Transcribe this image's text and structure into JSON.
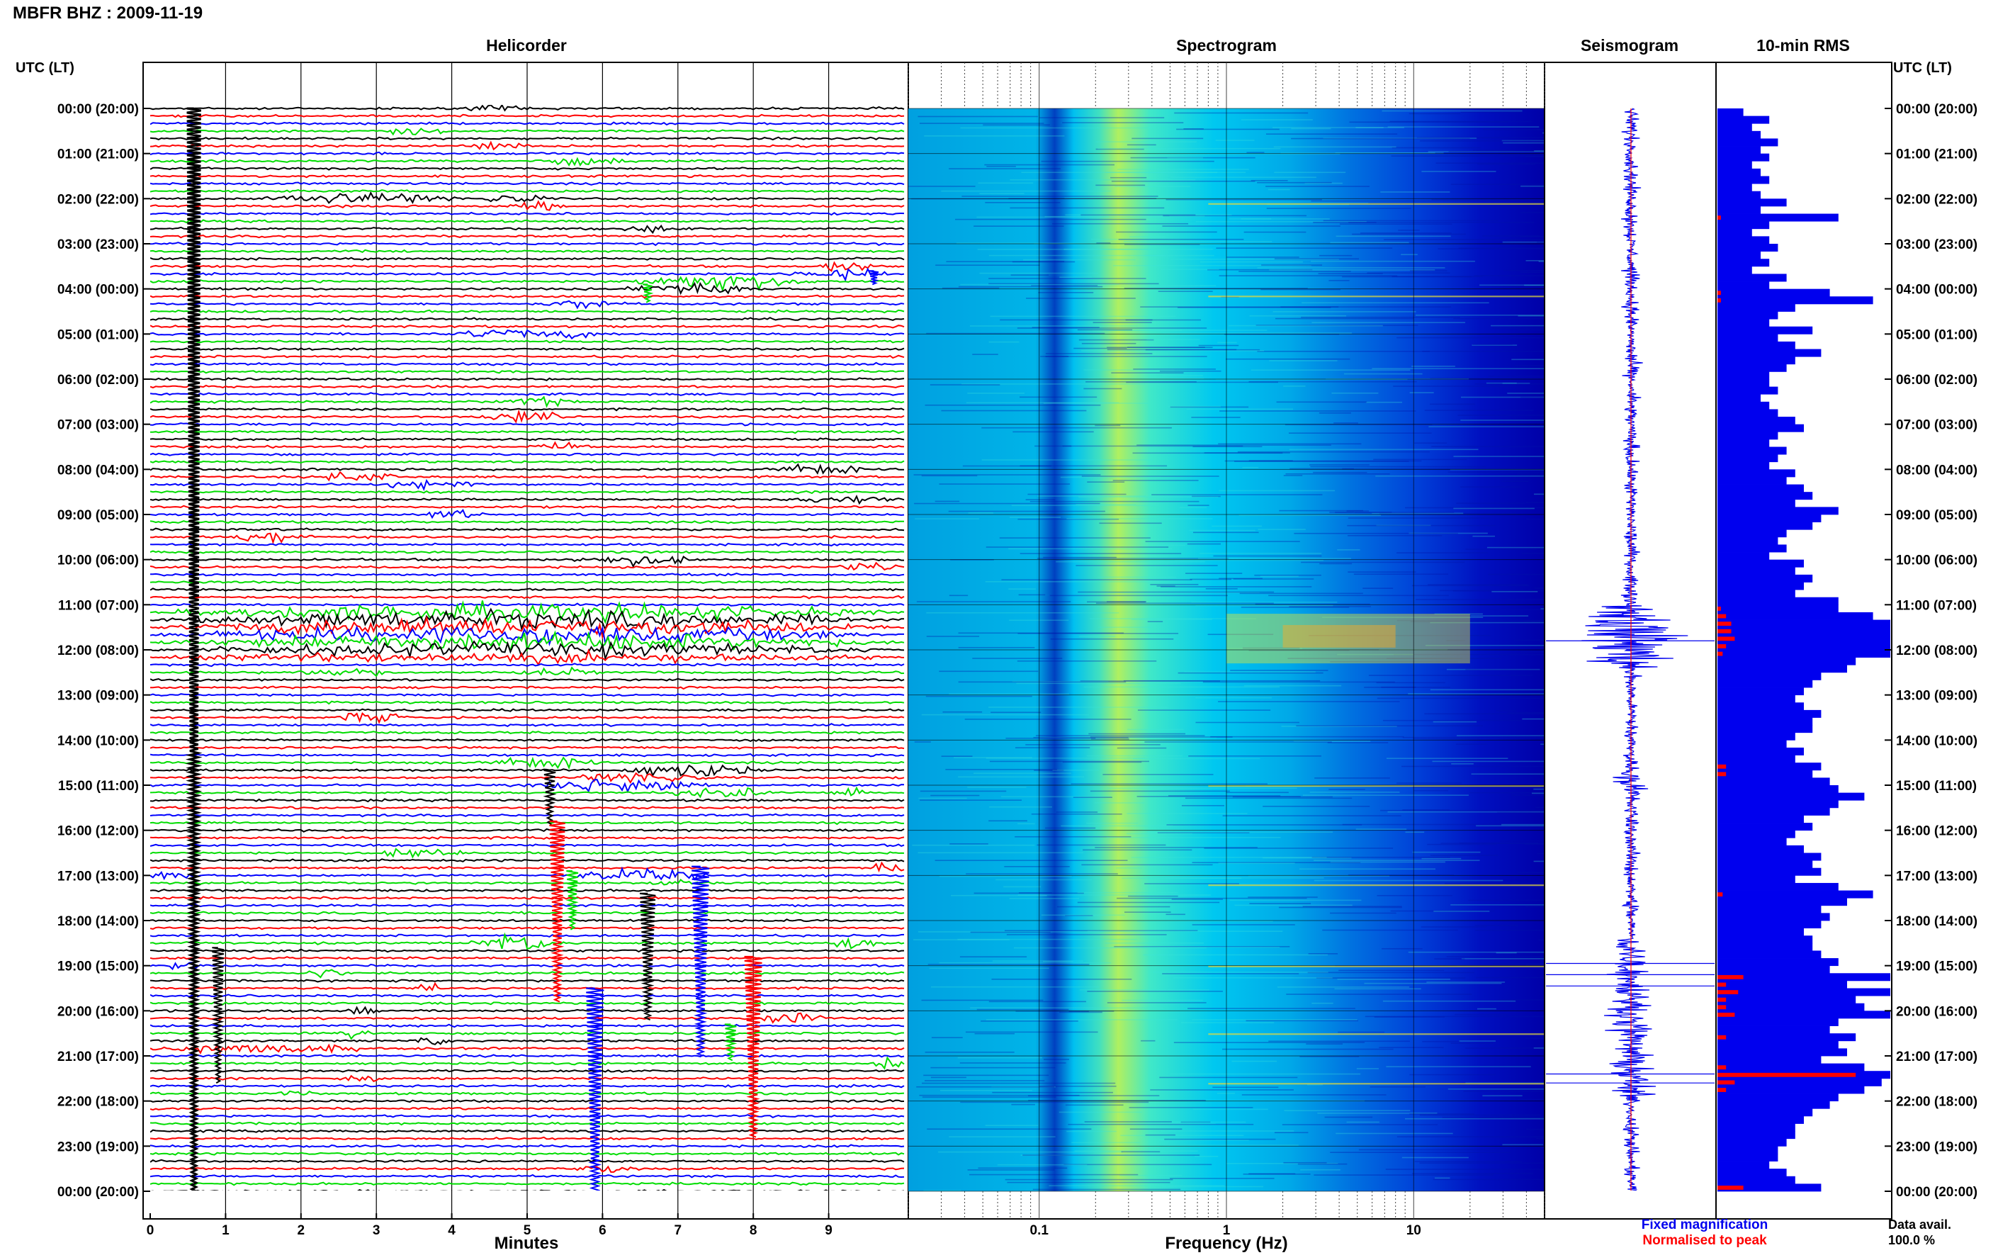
{
  "title": "MBFR BHZ : 2009-11-19",
  "colors": {
    "trace_cycle": [
      "#000000",
      "#ff0000",
      "#0000ff",
      "#00dd00"
    ],
    "rms_fixed": "#0000ee",
    "rms_norm": "#ff0000",
    "spec_low": "#0000cc",
    "spec_mid": "#00bbee",
    "spec_high": "#f0f000"
  },
  "chart_data": [
    {
      "type": "line",
      "title": "Helicorder",
      "xlabel": "Minutes",
      "x_ticks": [
        "0",
        "1",
        "2",
        "3",
        "4",
        "5",
        "6",
        "7",
        "8",
        "9"
      ],
      "xlim": [
        0,
        10
      ],
      "y_axis_label": "UTC (LT)",
      "y_ticks_utc_lt": [
        "00:00 (20:00)",
        "01:00 (21:00)",
        "02:00 (22:00)",
        "03:00 (23:00)",
        "04:00 (00:00)",
        "05:00 (01:00)",
        "06:00 (02:00)",
        "07:00 (03:00)",
        "08:00 (04:00)",
        "09:00 (05:00)",
        "10:00 (06:00)",
        "11:00 (07:00)",
        "12:00 (08:00)",
        "13:00 (09:00)",
        "14:00 (10:00)",
        "15:00 (11:00)",
        "16:00 (12:00)",
        "17:00 (13:00)",
        "18:00 (14:00)",
        "19:00 (15:00)",
        "20:00 (16:00)",
        "21:00 (17:00)",
        "22:00 (18:00)",
        "23:00 (19:00)",
        "00:00 (20:00)"
      ],
      "lines_per_hour": 6,
      "line_duration_min": 10,
      "events": [
        {
          "hour": 0.0,
          "minute": 4.1,
          "dur": 1.0,
          "amp": 0.25
        },
        {
          "hour": 0.5,
          "minute": 3.0,
          "dur": 1.0,
          "amp": 0.3
        },
        {
          "hour": 0.8,
          "minute": 4.0,
          "dur": 1.2,
          "amp": 0.35
        },
        {
          "hour": 1.17,
          "minute": 5.0,
          "dur": 1.5,
          "amp": 0.35
        },
        {
          "hour": 2.0,
          "minute": 1.4,
          "dur": 2.8,
          "amp": 0.6
        },
        {
          "hour": 2.0,
          "minute": 4.3,
          "dur": 1.0,
          "amp": 0.5
        },
        {
          "hour": 2.1,
          "minute": 4.7,
          "dur": 0.8,
          "amp": 0.5
        },
        {
          "hour": 2.65,
          "minute": 6.2,
          "dur": 1.0,
          "amp": 0.35
        },
        {
          "hour": 3.5,
          "minute": 8.6,
          "dur": 1.3,
          "amp": 0.5
        },
        {
          "hour": 3.65,
          "minute": 8.4,
          "dur": 1.5,
          "amp": 0.5
        },
        {
          "hour": 3.83,
          "minute": 6.3,
          "dur": 2.6,
          "amp": 0.8
        },
        {
          "hour": 4.0,
          "minute": 6.2,
          "dur": 2.0,
          "amp": 0.6
        },
        {
          "hour": 4.3,
          "minute": 5.2,
          "dur": 1.2,
          "amp": 0.4
        },
        {
          "hour": 5.0,
          "minute": 4.0,
          "dur": 1.5,
          "amp": 0.5
        },
        {
          "hour": 5.0,
          "minute": 5.0,
          "dur": 1.0,
          "amp": 0.4
        },
        {
          "hour": 6.5,
          "minute": 4.5,
          "dur": 1.2,
          "amp": 0.5
        },
        {
          "hour": 6.83,
          "minute": 4.3,
          "dur": 1.3,
          "amp": 0.55
        },
        {
          "hour": 7.5,
          "minute": 5.0,
          "dur": 1.0,
          "amp": 0.35
        },
        {
          "hour": 8.2,
          "minute": 2.2,
          "dur": 1.2,
          "amp": 0.6
        },
        {
          "hour": 8.33,
          "minute": 3.0,
          "dur": 1.5,
          "amp": 0.4
        },
        {
          "hour": 8.0,
          "minute": 8.3,
          "dur": 1.2,
          "amp": 0.55
        },
        {
          "hour": 8.65,
          "minute": 8.5,
          "dur": 1.5,
          "amp": 0.4
        },
        {
          "hour": 9.0,
          "minute": 3.5,
          "dur": 1.0,
          "amp": 0.4
        },
        {
          "hour": 9.5,
          "minute": 1.0,
          "dur": 1.2,
          "amp": 0.6
        },
        {
          "hour": 10.0,
          "minute": 5.5,
          "dur": 1.8,
          "amp": 0.5
        },
        {
          "hour": 10.2,
          "minute": 9.0,
          "dur": 1.0,
          "amp": 0.5
        },
        {
          "hour": 11.17,
          "minute": 0.0,
          "dur": 10.0,
          "amp": 0.9
        },
        {
          "hour": 11.33,
          "minute": 0.0,
          "dur": 10.0,
          "amp": 0.9
        },
        {
          "hour": 11.5,
          "minute": 0.0,
          "dur": 10.0,
          "amp": 0.95
        },
        {
          "hour": 11.67,
          "minute": 0.0,
          "dur": 10.0,
          "amp": 0.9
        },
        {
          "hour": 11.83,
          "minute": 0.0,
          "dur": 10.0,
          "amp": 0.9
        },
        {
          "hour": 12.0,
          "minute": 0.0,
          "dur": 10.0,
          "amp": 0.7
        },
        {
          "hour": 12.17,
          "minute": 0.0,
          "dur": 10.0,
          "amp": 0.5
        },
        {
          "hour": 12.5,
          "minute": 1.8,
          "dur": 1.5,
          "amp": 0.4
        },
        {
          "hour": 12.5,
          "minute": 4.8,
          "dur": 1.2,
          "amp": 0.4
        },
        {
          "hour": 13.5,
          "minute": 2.3,
          "dur": 1.2,
          "amp": 0.5
        },
        {
          "hour": 14.5,
          "minute": 4.5,
          "dur": 1.5,
          "amp": 0.6
        },
        {
          "hour": 14.67,
          "minute": 6.2,
          "dur": 2.0,
          "amp": 0.7
        },
        {
          "hour": 14.83,
          "minute": 5.5,
          "dur": 2.0,
          "amp": 0.6
        },
        {
          "hour": 15.0,
          "minute": 5.0,
          "dur": 2.5,
          "amp": 0.8
        },
        {
          "hour": 15.17,
          "minute": 6.8,
          "dur": 1.5,
          "amp": 0.5
        },
        {
          "hour": 15.17,
          "minute": 9.0,
          "dur": 0.6,
          "amp": 0.6
        },
        {
          "hour": 16.5,
          "minute": 3.0,
          "dur": 1.2,
          "amp": 0.5
        },
        {
          "hour": 16.83,
          "minute": 9.5,
          "dur": 0.6,
          "amp": 0.6
        },
        {
          "hour": 17.0,
          "minute": 0.0,
          "dur": 0.6,
          "amp": 0.7
        },
        {
          "hour": 17.0,
          "minute": 5.5,
          "dur": 2.0,
          "amp": 0.6
        },
        {
          "hour": 17.17,
          "minute": 6.5,
          "dur": 1.0,
          "amp": 0.4
        },
        {
          "hour": 18.5,
          "minute": 4.2,
          "dur": 1.3,
          "amp": 0.9
        },
        {
          "hour": 18.5,
          "minute": 9.0,
          "dur": 0.8,
          "amp": 0.7
        },
        {
          "hour": 19.0,
          "minute": 0.2,
          "dur": 0.5,
          "amp": 0.6
        },
        {
          "hour": 19.17,
          "minute": 2.0,
          "dur": 0.6,
          "amp": 0.5
        },
        {
          "hour": 19.5,
          "minute": 3.4,
          "dur": 0.5,
          "amp": 0.5
        },
        {
          "hour": 20.0,
          "minute": 2.6,
          "dur": 0.5,
          "amp": 0.5
        },
        {
          "hour": 20.2,
          "minute": 8.0,
          "dur": 1.0,
          "amp": 0.8
        },
        {
          "hour": 20.5,
          "minute": 2.5,
          "dur": 0.5,
          "amp": 0.5
        },
        {
          "hour": 20.67,
          "minute": 3.5,
          "dur": 0.5,
          "amp": 0.5
        },
        {
          "hour": 20.83,
          "minute": 0.0,
          "dur": 3.0,
          "amp": 0.5
        },
        {
          "hour": 21.2,
          "minute": 9.6,
          "dur": 0.4,
          "amp": 0.9
        },
        {
          "hour": 21.5,
          "minute": 2.5,
          "dur": 0.6,
          "amp": 0.5
        },
        {
          "hour": 21.83,
          "minute": 1.7,
          "dur": 0.5,
          "amp": 0.4
        },
        {
          "hour": 23.5,
          "minute": 5.5,
          "dur": 1.0,
          "amp": 0.4
        }
      ],
      "transients": [
        {
          "hour": 0.0,
          "minute": 0.58,
          "amp": 1.0,
          "dir": "down",
          "len_h": 24.0
        },
        {
          "hour": 3.6,
          "minute": 9.6,
          "amp": 0.5,
          "dir": "up",
          "len_h": 0.3
        },
        {
          "hour": 3.9,
          "minute": 6.6,
          "amp": 0.5,
          "dir": "down",
          "len_h": 0.4
        },
        {
          "hour": 14.67,
          "minute": 5.3,
          "amp": 0.6,
          "dir": "down",
          "len_h": 1.2
        },
        {
          "hour": 15.8,
          "minute": 5.4,
          "amp": 0.8,
          "dir": "down",
          "len_h": 4.0
        },
        {
          "hour": 16.8,
          "minute": 7.3,
          "amp": 0.9,
          "dir": "down",
          "len_h": 4.2
        },
        {
          "hour": 16.9,
          "minute": 5.6,
          "amp": 0.6,
          "dir": "up",
          "len_h": 1.3
        },
        {
          "hour": 17.4,
          "minute": 6.6,
          "amp": 0.8,
          "dir": "down",
          "len_h": 2.8
        },
        {
          "hour": 18.8,
          "minute": 8.0,
          "amp": 0.9,
          "dir": "down",
          "len_h": 4.0
        },
        {
          "hour": 19.5,
          "minute": 5.9,
          "amp": 0.9,
          "dir": "down",
          "len_h": 5.0
        },
        {
          "hour": 20.3,
          "minute": 7.7,
          "amp": 0.6,
          "dir": "down",
          "len_h": 0.8
        },
        {
          "hour": 18.6,
          "minute": 0.9,
          "amp": 0.6,
          "dir": "down",
          "len_h": 3.0
        }
      ]
    },
    {
      "type": "heatmap",
      "title": "Spectrogram",
      "xlabel": "Frequency (Hz)",
      "x_scale": "log",
      "xlim": [
        0.02,
        50
      ],
      "x_ticks": [
        0.1,
        1,
        10
      ],
      "x_tick_labels": [
        "0.1",
        "1",
        "10"
      ],
      "ylim_hours": [
        0,
        24
      ],
      "bright_bands_hz": [
        0.15,
        0.35
      ],
      "strong_period_hours": [
        11.2,
        12.3
      ],
      "horizontal_lines_hours": [
        2.1,
        4.15,
        15.0,
        17.2,
        19.0,
        20.5,
        21.6
      ]
    },
    {
      "type": "line",
      "title": "Seismogram",
      "xlabel": "",
      "legend": [
        {
          "name": "Fixed magnification",
          "color": "#0000ee"
        },
        {
          "name": "Normalised to peak",
          "color": "#ff0000"
        }
      ]
    },
    {
      "type": "bar",
      "title": "10-min RMS",
      "orientation": "horizontal",
      "bins_per_hour": 6,
      "fixed_magnification": [
        0.15,
        0.3,
        0.2,
        0.25,
        0.35,
        0.25,
        0.3,
        0.2,
        0.25,
        0.3,
        0.2,
        0.25,
        0.4,
        0.25,
        0.7,
        0.3,
        0.2,
        0.3,
        0.35,
        0.25,
        0.3,
        0.2,
        0.4,
        0.3,
        0.65,
        0.9,
        0.45,
        0.35,
        0.3,
        0.55,
        0.35,
        0.45,
        0.6,
        0.45,
        0.4,
        0.3,
        0.3,
        0.35,
        0.25,
        0.3,
        0.35,
        0.45,
        0.5,
        0.35,
        0.3,
        0.4,
        0.35,
        0.3,
        0.45,
        0.4,
        0.5,
        0.55,
        0.45,
        0.7,
        0.6,
        0.55,
        0.4,
        0.35,
        0.4,
        0.3,
        0.5,
        0.45,
        0.55,
        0.5,
        0.45,
        0.7,
        0.7,
        0.9,
        1.0,
        1.0,
        1.0,
        1.0,
        1.0,
        0.8,
        0.75,
        0.6,
        0.55,
        0.5,
        0.45,
        0.5,
        0.6,
        0.55,
        0.55,
        0.45,
        0.4,
        0.5,
        0.45,
        0.6,
        0.55,
        0.65,
        0.7,
        0.85,
        0.7,
        0.65,
        0.5,
        0.55,
        0.45,
        0.4,
        0.5,
        0.6,
        0.55,
        0.6,
        0.45,
        0.7,
        0.9,
        0.75,
        0.6,
        0.65,
        0.6,
        0.5,
        0.55,
        0.55,
        0.6,
        0.7,
        0.65,
        1.0,
        0.75,
        1.0,
        0.8,
        0.85,
        1.0,
        0.7,
        0.65,
        0.8,
        0.7,
        0.75,
        0.6,
        0.85,
        1.0,
        0.95,
        0.85,
        0.7,
        0.65,
        0.55,
        0.5,
        0.45,
        0.45,
        0.4,
        0.35,
        0.35,
        0.3,
        0.4,
        0.45,
        0.6
      ],
      "normalised_to_peak": [
        0,
        0,
        0,
        0,
        0,
        0,
        0,
        0,
        0,
        0,
        0,
        0,
        0,
        0,
        0.02,
        0,
        0,
        0,
        0,
        0,
        0,
        0,
        0,
        0,
        0.02,
        0.02,
        0,
        0,
        0,
        0,
        0,
        0,
        0,
        0,
        0,
        0,
        0,
        0,
        0,
        0,
        0,
        0,
        0,
        0,
        0,
        0,
        0,
        0,
        0,
        0,
        0,
        0,
        0,
        0,
        0,
        0,
        0,
        0,
        0,
        0,
        0,
        0,
        0,
        0,
        0,
        0,
        0.02,
        0.05,
        0.08,
        0.08,
        0.1,
        0.05,
        0.03,
        0,
        0,
        0,
        0,
        0,
        0,
        0,
        0,
        0,
        0,
        0,
        0,
        0,
        0,
        0.05,
        0.05,
        0,
        0,
        0,
        0,
        0,
        0,
        0,
        0,
        0,
        0,
        0,
        0,
        0,
        0,
        0,
        0.03,
        0,
        0,
        0,
        0,
        0,
        0,
        0,
        0,
        0,
        0,
        0.15,
        0.05,
        0.12,
        0.05,
        0.05,
        0.1,
        0,
        0,
        0.05,
        0,
        0,
        0,
        0.05,
        0.8,
        0.1,
        0.05,
        0,
        0,
        0,
        0,
        0,
        0,
        0,
        0,
        0,
        0,
        0,
        0,
        0.15
      ]
    }
  ],
  "axis_label_utc_left": "UTC (LT)",
  "axis_label_utc_right": "UTC (LT)",
  "legend_fixed": "Fixed magnification",
  "legend_norm": "Normalised to peak",
  "data_avail_label": "Data avail.",
  "data_avail_value": "100.0 %"
}
